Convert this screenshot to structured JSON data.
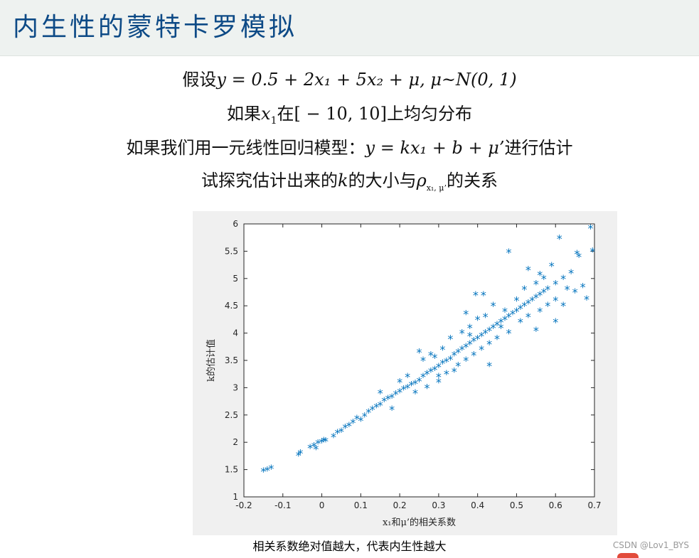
{
  "header": {
    "title": "内生性的蒙特卡罗模拟"
  },
  "formulas": {
    "line1": {
      "prefix": "假设",
      "model": "y = 0.5 + 2x₁ + 5x₂ + μ, μ~N(0, 1)"
    },
    "line2": {
      "text_a": "如果",
      "var": "x",
      "sub": "1",
      "text_b": "在[ − 10, 10]上均匀分布"
    },
    "line3": {
      "text": "如果我们用一元线性回归模型：",
      "model": "y = kx₁ + b + μ’",
      "suffix": "进行估计"
    },
    "line4": {
      "text_a": "试探究估计出来的",
      "var_k": "k",
      "text_b": "的大小与",
      "rho": "ρ",
      "rho_sub": "x₁, μ’",
      "text_c": "的关系"
    }
  },
  "caption": "相关系数绝对值越大，代表内生性越大",
  "watermark": "CSDN @Lov1_BYS",
  "chart_data": {
    "type": "scatter",
    "title": "",
    "xlabel": "x₁和μ’的相关系数",
    "ylabel": "k的估计值",
    "xlim": [
      -0.2,
      0.7
    ],
    "ylim": [
      1,
      6
    ],
    "xticks": [
      -0.2,
      -0.1,
      0,
      0.1,
      0.2,
      0.3,
      0.4,
      0.5,
      0.6,
      0.7
    ],
    "yticks": [
      1,
      1.5,
      2,
      2.5,
      3,
      3.5,
      4,
      4.5,
      5,
      5.5,
      6
    ],
    "xtick_labels": [
      "-0.2",
      "-0.1",
      "0",
      "0.1",
      "0.2",
      "0.3",
      "0.4",
      "0.5",
      "0.6",
      "0.7"
    ],
    "ytick_labels": [
      "1",
      "1.5",
      "2",
      "2.5",
      "3",
      "3.5",
      "4",
      "4.5",
      "5",
      "5.5",
      "6"
    ],
    "marker": "*",
    "color": "#0072bd",
    "grid": false,
    "points": [
      [
        -0.15,
        1.47
      ],
      [
        -0.14,
        1.49
      ],
      [
        -0.13,
        1.52
      ],
      [
        -0.06,
        1.76
      ],
      [
        -0.055,
        1.8
      ],
      [
        -0.03,
        1.9
      ],
      [
        -0.02,
        1.93
      ],
      [
        -0.015,
        1.88
      ],
      [
        -0.01,
        1.98
      ],
      [
        0.0,
        2.0
      ],
      [
        0.005,
        2.03
      ],
      [
        0.01,
        2.02
      ],
      [
        0.03,
        2.1
      ],
      [
        0.04,
        2.17
      ],
      [
        0.05,
        2.2
      ],
      [
        0.06,
        2.27
      ],
      [
        0.07,
        2.3
      ],
      [
        0.08,
        2.36
      ],
      [
        0.09,
        2.43
      ],
      [
        0.1,
        2.4
      ],
      [
        0.11,
        2.48
      ],
      [
        0.12,
        2.55
      ],
      [
        0.13,
        2.6
      ],
      [
        0.14,
        2.65
      ],
      [
        0.15,
        2.68
      ],
      [
        0.16,
        2.76
      ],
      [
        0.17,
        2.8
      ],
      [
        0.18,
        2.82
      ],
      [
        0.19,
        2.88
      ],
      [
        0.2,
        2.92
      ],
      [
        0.21,
        2.97
      ],
      [
        0.22,
        3.0
      ],
      [
        0.23,
        3.05
      ],
      [
        0.24,
        3.08
      ],
      [
        0.25,
        3.12
      ],
      [
        0.26,
        3.2
      ],
      [
        0.27,
        3.25
      ],
      [
        0.28,
        3.3
      ],
      [
        0.29,
        3.33
      ],
      [
        0.3,
        3.38
      ],
      [
        0.31,
        3.45
      ],
      [
        0.32,
        3.48
      ],
      [
        0.33,
        3.52
      ],
      [
        0.34,
        3.6
      ],
      [
        0.35,
        3.65
      ],
      [
        0.36,
        3.7
      ],
      [
        0.37,
        3.75
      ],
      [
        0.38,
        3.8
      ],
      [
        0.39,
        3.86
      ],
      [
        0.4,
        3.9
      ],
      [
        0.41,
        3.95
      ],
      [
        0.42,
        4.0
      ],
      [
        0.43,
        4.05
      ],
      [
        0.44,
        4.1
      ],
      [
        0.45,
        4.15
      ],
      [
        0.46,
        4.2
      ],
      [
        0.47,
        4.25
      ],
      [
        0.48,
        4.3
      ],
      [
        0.49,
        4.35
      ],
      [
        0.5,
        4.4
      ],
      [
        0.51,
        4.45
      ],
      [
        0.52,
        4.5
      ],
      [
        0.53,
        4.55
      ],
      [
        0.54,
        4.6
      ],
      [
        0.55,
        4.65
      ],
      [
        0.56,
        4.7
      ],
      [
        0.57,
        4.75
      ],
      [
        0.58,
        4.8
      ],
      [
        0.6,
        4.9
      ],
      [
        0.62,
        5.0
      ],
      [
        0.64,
        5.1
      ],
      [
        0.15,
        2.9
      ],
      [
        0.18,
        2.6
      ],
      [
        0.22,
        3.2
      ],
      [
        0.24,
        2.9
      ],
      [
        0.26,
        3.5
      ],
      [
        0.27,
        3.0
      ],
      [
        0.28,
        3.6
      ],
      [
        0.3,
        3.1
      ],
      [
        0.31,
        3.7
      ],
      [
        0.32,
        3.25
      ],
      [
        0.33,
        3.9
      ],
      [
        0.35,
        3.4
      ],
      [
        0.36,
        4.0
      ],
      [
        0.37,
        3.5
      ],
      [
        0.38,
        4.1
      ],
      [
        0.39,
        3.6
      ],
      [
        0.4,
        4.25
      ],
      [
        0.41,
        3.7
      ],
      [
        0.42,
        4.3
      ],
      [
        0.43,
        3.8
      ],
      [
        0.44,
        4.5
      ],
      [
        0.45,
        3.9
      ],
      [
        0.46,
        4.1
      ],
      [
        0.47,
        4.4
      ],
      [
        0.48,
        4.0
      ],
      [
        0.5,
        4.6
      ],
      [
        0.51,
        4.2
      ],
      [
        0.52,
        4.8
      ],
      [
        0.53,
        4.3
      ],
      [
        0.55,
        4.9
      ],
      [
        0.56,
        4.4
      ],
      [
        0.57,
        5.0
      ],
      [
        0.58,
        4.5
      ],
      [
        0.6,
        4.6
      ],
      [
        0.62,
        4.5
      ],
      [
        0.63,
        4.8
      ],
      [
        0.65,
        4.75
      ],
      [
        0.66,
        5.4
      ],
      [
        0.67,
        4.85
      ],
      [
        0.68,
        4.62
      ],
      [
        0.48,
        5.48
      ],
      [
        0.53,
        5.16
      ],
      [
        0.56,
        5.07
      ],
      [
        0.59,
        5.23
      ],
      [
        0.61,
        5.73
      ],
      [
        0.69,
        5.92
      ],
      [
        0.695,
        5.5
      ],
      [
        0.655,
        5.45
      ],
      [
        0.6,
        4.2
      ],
      [
        0.55,
        4.05
      ],
      [
        0.25,
        3.65
      ],
      [
        0.29,
        3.55
      ],
      [
        0.34,
        3.3
      ],
      [
        0.37,
        4.35
      ],
      [
        0.43,
        3.4
      ],
      [
        0.395,
        4.7
      ],
      [
        0.415,
        4.7
      ],
      [
        0.38,
        3.95
      ],
      [
        0.3,
        3.2
      ],
      [
        0.2,
        3.1
      ]
    ]
  }
}
